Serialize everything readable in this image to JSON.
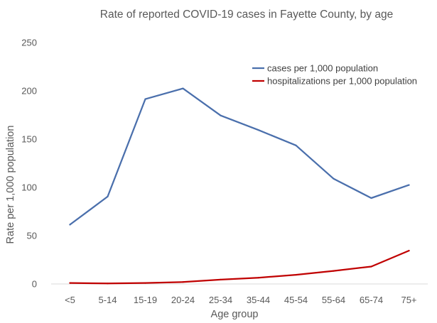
{
  "chart_data": {
    "type": "line",
    "title": "Rate of reported COVID-19 cases in Fayette County, by age",
    "xlabel": "Age group",
    "ylabel": "Rate per 1,000 population",
    "categories": [
      "<5",
      "5-14",
      "15-19",
      "20-24",
      "25-34",
      "35-44",
      "45-54",
      "55-64",
      "65-74",
      "75+"
    ],
    "ylim": [
      0,
      250
    ],
    "yticks": [
      0,
      50,
      100,
      150,
      200,
      250
    ],
    "grid": false,
    "legend_position": "top-right",
    "series": [
      {
        "name": "cases per 1,000 population",
        "color": "#4a6fac",
        "values": [
          61.5,
          90.5,
          191.5,
          202.5,
          174.5,
          159.5,
          143.5,
          109,
          89,
          102.5
        ]
      },
      {
        "name": "hospitalizations per 1,000 population",
        "color": "#c00000",
        "values": [
          1,
          0.5,
          1,
          2,
          4.5,
          6.5,
          9.5,
          13.5,
          18,
          34.5
        ]
      }
    ]
  }
}
